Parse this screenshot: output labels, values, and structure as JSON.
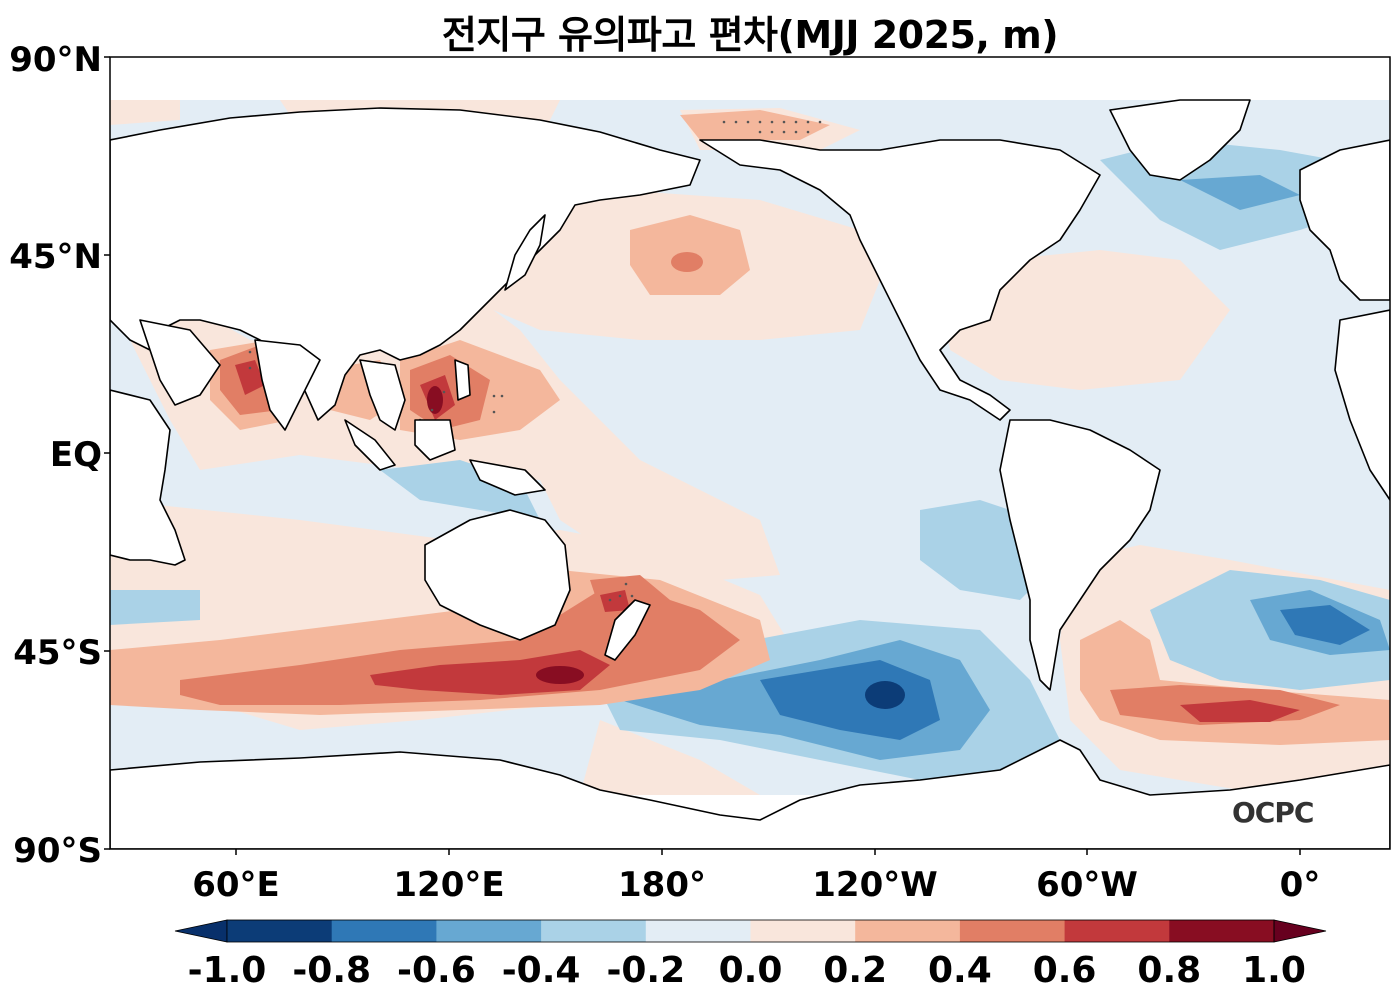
{
  "title": "전지구 유의파고 편차(MJJ 2025, m)",
  "logo": "OCPC",
  "lat_ticks": [
    "90°N",
    "45°N",
    "EQ",
    "45°S",
    "90°S"
  ],
  "lon_ticks": [
    "60°E",
    "120°E",
    "180°",
    "120°W",
    "60°W",
    "0°"
  ],
  "colorbar": {
    "ticks": [
      "-1.0",
      "-0.8",
      "-0.6",
      "-0.4",
      "-0.2",
      "0.0",
      "0.2",
      "0.4",
      "0.6",
      "0.8",
      "1.0"
    ],
    "levels": [
      -1.0,
      -0.8,
      -0.6,
      -0.4,
      -0.2,
      0.0,
      0.2,
      0.4,
      0.6,
      0.8,
      1.0
    ],
    "colors": [
      "#0c3c77",
      "#2f78b6",
      "#67a8d2",
      "#aad2e7",
      "#e3edf5",
      "#f9e6dc",
      "#f4b79c",
      "#e17e65",
      "#c2393c",
      "#880d22"
    ],
    "under_color": "#08306b",
    "over_color": "#67001f",
    "extend": "both"
  },
  "map_colors": {
    "ocean_base": "#e3edf5",
    "land": "#ffffff",
    "coast": "#000000"
  }
}
